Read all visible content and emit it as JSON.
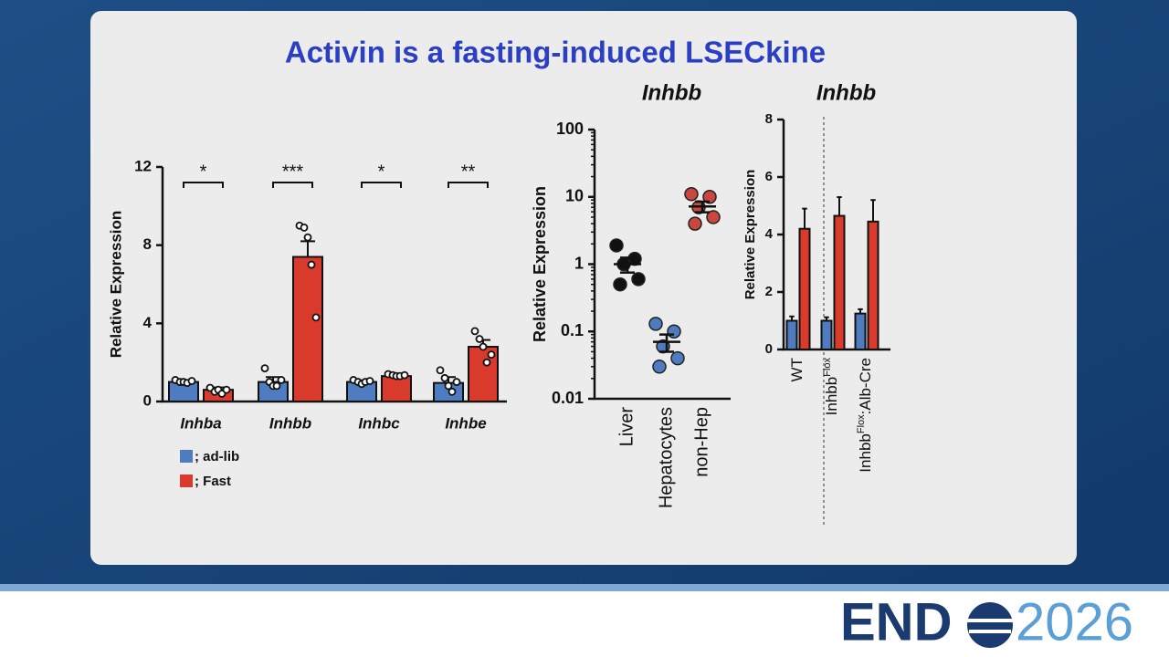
{
  "title": "Activin is a fasting-induced LSECkine",
  "footer": {
    "brand": "END",
    "year": "2026"
  },
  "chart_data": [
    {
      "type": "bar",
      "y_label": "Relative Expression",
      "categories": [
        "Inhba",
        "Inhbb",
        "Inhbc",
        "Inhbe"
      ],
      "annotations": [
        "*",
        "***",
        "*",
        "**"
      ],
      "ylim": [
        0,
        12
      ],
      "yticks": [
        0,
        4,
        8,
        12
      ],
      "grid": false,
      "legend": "bottom-left",
      "series": [
        {
          "name": "; ad-lib",
          "color": "#4f7bc1",
          "values": [
            1.0,
            1.0,
            1.0,
            0.95
          ],
          "errors": [
            0.08,
            0.25,
            0.08,
            0.3
          ],
          "points": [
            [
              1.1,
              1.0,
              1.0,
              0.95,
              1.05
            ],
            [
              1.7,
              1.0,
              0.8,
              0.8,
              1.1
            ],
            [
              1.1,
              1.0,
              0.9,
              1.0,
              1.05
            ],
            [
              1.6,
              1.2,
              0.8,
              0.5,
              1.0
            ]
          ]
        },
        {
          "name": "; Fast",
          "color": "#d93a2b",
          "values": [
            0.6,
            7.4,
            1.3,
            2.8
          ],
          "errors": [
            0.12,
            0.8,
            0.05,
            0.35
          ],
          "points": [
            [
              0.7,
              0.5,
              0.6,
              0.4,
              0.6
            ],
            [
              9.0,
              8.9,
              8.4,
              7.0,
              4.3
            ],
            [
              1.4,
              1.35,
              1.3,
              1.3,
              1.35
            ],
            [
              3.6,
              3.2,
              2.8,
              2.0,
              2.4
            ]
          ]
        }
      ]
    },
    {
      "type": "dot",
      "title": "Inhbb",
      "y_label": "Relative Expression",
      "categories": [
        "Liver",
        "Hepatocytes",
        "non-Hep"
      ],
      "colors": [
        "#111111",
        "#4f7bc1",
        "#c9473f"
      ],
      "points": [
        [
          1.9,
          1.2,
          1.0,
          0.6,
          0.5
        ],
        [
          0.13,
          0.1,
          0.06,
          0.04,
          0.03
        ],
        [
          11,
          10,
          7,
          5,
          4
        ]
      ],
      "means": [
        1.0,
        0.07,
        7.2
      ],
      "errors": [
        0.25,
        0.02,
        1.3
      ],
      "log_scale": true,
      "ylim": [
        0.01,
        100
      ],
      "yticks": [
        0.01,
        0.1,
        1,
        10,
        100
      ],
      "grid": false
    },
    {
      "type": "bar",
      "title": "Inhbb",
      "y_label": "Relative Expression",
      "categories": [
        {
          "base": "WT"
        },
        {
          "base": "Inhbb",
          "sup": "Flox"
        },
        {
          "base": "Inhbb",
          "sup": "Flox",
          "rest": ":Alb-Cre"
        }
      ],
      "ylim": [
        0,
        8
      ],
      "yticks": [
        0,
        2,
        4,
        6,
        8
      ],
      "grid": false,
      "series": [
        {
          "color": "#4f7bc1",
          "values": [
            1.0,
            1.0,
            1.25
          ],
          "errors": [
            0.15,
            0.12,
            0.15
          ]
        },
        {
          "color": "#d93a2b",
          "values": [
            4.2,
            4.65,
            4.45
          ],
          "errors": [
            0.7,
            0.65,
            0.75
          ]
        }
      ]
    }
  ]
}
